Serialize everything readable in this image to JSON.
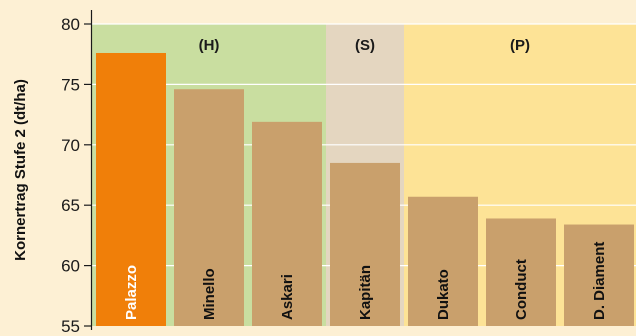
{
  "chart_data": {
    "type": "bar",
    "ylabel": "Kornertrag Stufe 2 (dt/ha)",
    "xlabel": "",
    "ylim": [
      55,
      80
    ],
    "yticks": [
      55,
      60,
      65,
      70,
      75,
      80
    ],
    "grid": true,
    "categories": [
      "Palazzo",
      "Minello",
      "Askari",
      "Kapitän",
      "Dukato",
      "Conduct",
      "D. Diament"
    ],
    "values": [
      77.6,
      74.6,
      71.9,
      68.5,
      65.7,
      63.9,
      63.4
    ],
    "bar_colors": [
      "#f07f09",
      "#c9a06c",
      "#c9a06c",
      "#c9a06c",
      "#c9a06c",
      "#c9a06c",
      "#c9a06c"
    ],
    "category_label_colors": [
      "#ffffff",
      "#111111",
      "#111111",
      "#111111",
      "#111111",
      "#111111",
      "#111111"
    ],
    "groups": [
      {
        "label": "(H)",
        "start": 0,
        "end": 2,
        "color": "#c9dea0"
      },
      {
        "label": "(S)",
        "start": 3,
        "end": 3,
        "color": "#e4d6c0"
      },
      {
        "label": "(P)",
        "start": 4,
        "end": 6,
        "color": "#fde396"
      }
    ],
    "background_color": "#fdf0d4"
  }
}
